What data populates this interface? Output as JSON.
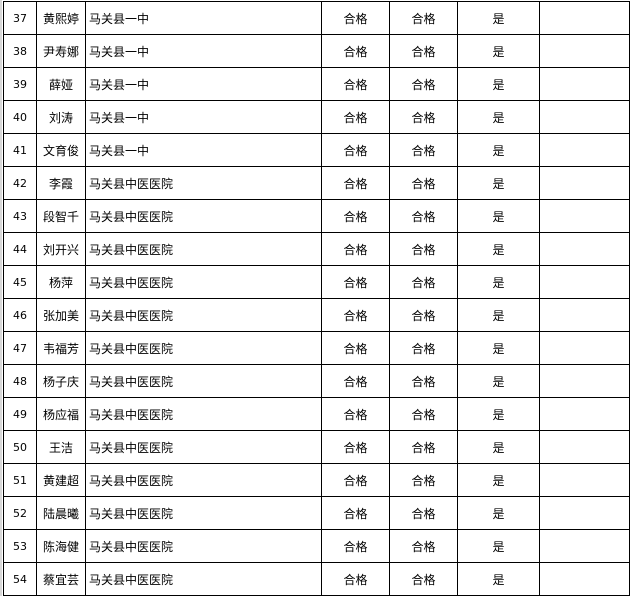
{
  "rows": [
    {
      "no": "37",
      "name": "黄熙婷",
      "unit": "马关县一中",
      "r1": "合格",
      "r2": "合格",
      "r3": "是",
      "note": ""
    },
    {
      "no": "38",
      "name": "尹寿娜",
      "unit": "马关县一中",
      "r1": "合格",
      "r2": "合格",
      "r3": "是",
      "note": ""
    },
    {
      "no": "39",
      "name": "薛娅",
      "unit": "马关县一中",
      "r1": "合格",
      "r2": "合格",
      "r3": "是",
      "note": ""
    },
    {
      "no": "40",
      "name": "刘涛",
      "unit": "马关县一中",
      "r1": "合格",
      "r2": "合格",
      "r3": "是",
      "note": ""
    },
    {
      "no": "41",
      "name": "文育俊",
      "unit": "马关县一中",
      "r1": "合格",
      "r2": "合格",
      "r3": "是",
      "note": ""
    },
    {
      "no": "42",
      "name": "李霞",
      "unit": "马关县中医医院",
      "r1": "合格",
      "r2": "合格",
      "r3": "是",
      "note": ""
    },
    {
      "no": "43",
      "name": "段智千",
      "unit": "马关县中医医院",
      "r1": "合格",
      "r2": "合格",
      "r3": "是",
      "note": ""
    },
    {
      "no": "44",
      "name": "刘开兴",
      "unit": "马关县中医医院",
      "r1": "合格",
      "r2": "合格",
      "r3": "是",
      "note": ""
    },
    {
      "no": "45",
      "name": "杨萍",
      "unit": "马关县中医医院",
      "r1": "合格",
      "r2": "合格",
      "r3": "是",
      "note": ""
    },
    {
      "no": "46",
      "name": "张加美",
      "unit": "马关县中医医院",
      "r1": "合格",
      "r2": "合格",
      "r3": "是",
      "note": ""
    },
    {
      "no": "47",
      "name": "韦福芳",
      "unit": "马关县中医医院",
      "r1": "合格",
      "r2": "合格",
      "r3": "是",
      "note": ""
    },
    {
      "no": "48",
      "name": "杨子庆",
      "unit": "马关县中医医院",
      "r1": "合格",
      "r2": "合格",
      "r3": "是",
      "note": ""
    },
    {
      "no": "49",
      "name": "杨应福",
      "unit": "马关县中医医院",
      "r1": "合格",
      "r2": "合格",
      "r3": "是",
      "note": ""
    },
    {
      "no": "50",
      "name": "王洁",
      "unit": "马关县中医医院",
      "r1": "合格",
      "r2": "合格",
      "r3": "是",
      "note": ""
    },
    {
      "no": "51",
      "name": "黄建超",
      "unit": "马关县中医医院",
      "r1": "合格",
      "r2": "合格",
      "r3": "是",
      "note": ""
    },
    {
      "no": "52",
      "name": "陆晨曦",
      "unit": "马关县中医医院",
      "r1": "合格",
      "r2": "合格",
      "r3": "是",
      "note": ""
    },
    {
      "no": "53",
      "name": "陈海健",
      "unit": "马关县中医医院",
      "r1": "合格",
      "r2": "合格",
      "r3": "是",
      "note": ""
    },
    {
      "no": "54",
      "name": "蔡宜芸",
      "unit": "马关县中医医院",
      "r1": "合格",
      "r2": "合格",
      "r3": "是",
      "note": ""
    }
  ]
}
